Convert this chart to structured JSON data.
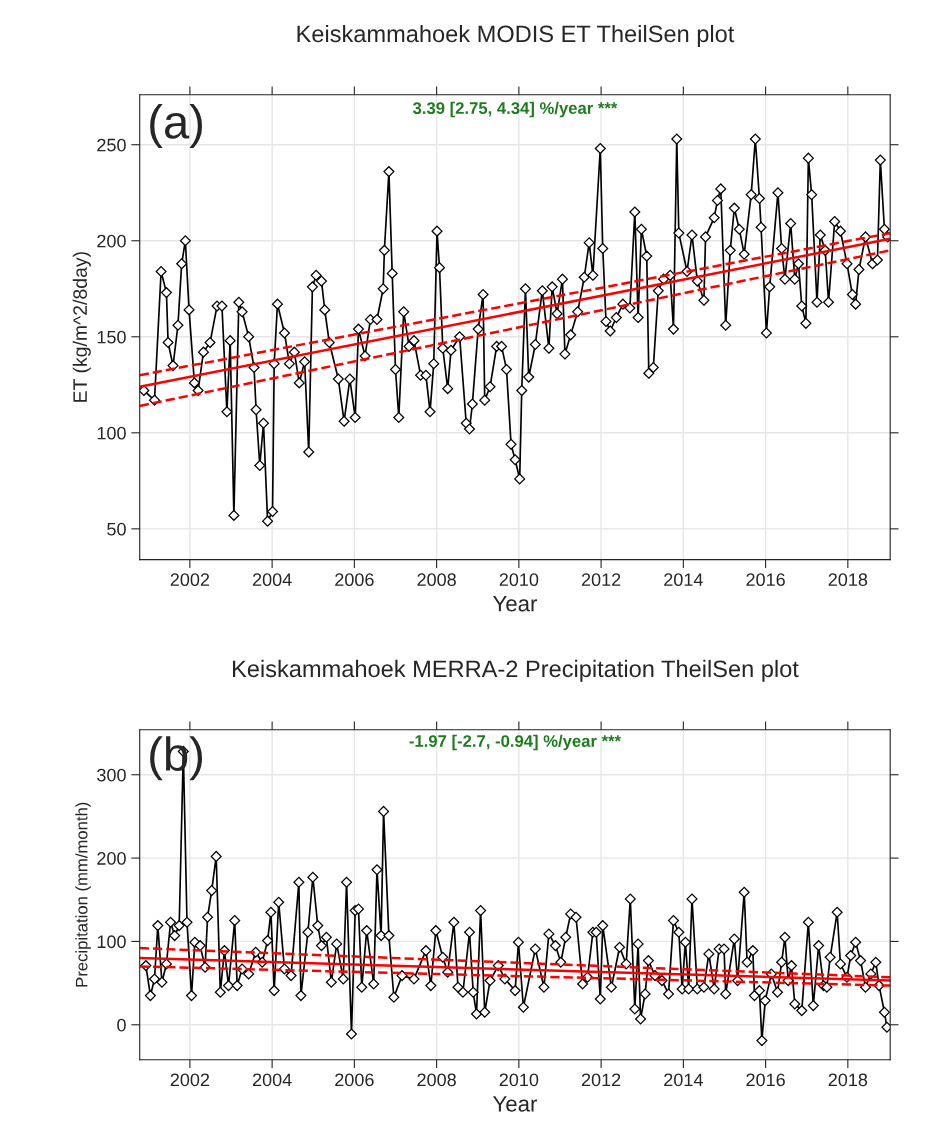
{
  "chart_data": [
    {
      "type": "line",
      "title": "Keiskammahoek MODIS ET TheilSen plot",
      "xlabel": "Year",
      "ylabel": "ET (kg/m^2/8day)",
      "annotations": [
        "(a)",
        "3.39 [2.75, 4.34] %/year ***"
      ],
      "xlim": [
        2000.78,
        2019.03
      ],
      "xticks": [
        2002,
        2004,
        2006,
        2008,
        2010,
        2012,
        2014,
        2016,
        2018
      ],
      "ylim": [
        34,
        276
      ],
      "yticks": [
        50,
        100,
        150,
        200,
        250
      ],
      "grid": true,
      "series": [
        {
          "color": "#000000",
          "marker": "diamond",
          "line_style": "solid",
          "x": [
            2000.88,
            2001.14,
            2001.3,
            2001.43,
            2001.47,
            2001.59,
            2001.71,
            2001.8,
            2001.89,
            2001.98,
            2002.11,
            2002.2,
            2002.33,
            2002.49,
            2002.66,
            2002.78,
            2002.9,
            2002.98,
            2003.07,
            2003.19,
            2003.27,
            2003.43,
            2003.56,
            2003.61,
            2003.7,
            2003.79,
            2003.89,
            2004.01,
            2004.05,
            2004.13,
            2004.3,
            2004.42,
            2004.54,
            2004.66,
            2004.79,
            2004.89,
            2004.98,
            2005.07,
            2005.2,
            2005.28,
            2005.39,
            2005.61,
            2005.75,
            2005.89,
            2006.02,
            2006.1,
            2006.26,
            2006.39,
            2006.55,
            2006.7,
            2006.73,
            2006.84,
            2006.92,
            2007.0,
            2007.08,
            2007.2,
            2007.33,
            2007.45,
            2007.61,
            2007.74,
            2007.84,
            2007.93,
            2008.01,
            2008.07,
            2008.15,
            2008.27,
            2008.35,
            2008.56,
            2008.72,
            2008.8,
            2008.87,
            2009.01,
            2009.13,
            2009.17,
            2009.3,
            2009.46,
            2009.58,
            2009.7,
            2009.81,
            2009.91,
            2010.02,
            2010.07,
            2010.16,
            2010.24,
            2010.4,
            2010.57,
            2010.73,
            2010.81,
            2010.93,
            2011.06,
            2011.12,
            2011.26,
            2011.43,
            2011.59,
            2011.71,
            2011.8,
            2011.98,
            2012.04,
            2012.12,
            2012.22,
            2012.37,
            2012.53,
            2012.7,
            2012.82,
            2012.9,
            2012.98,
            2013.11,
            2013.16,
            2013.27,
            2013.39,
            2013.52,
            2013.68,
            2013.76,
            2013.84,
            2013.89,
            2014.09,
            2014.21,
            2014.34,
            2014.5,
            2014.54,
            2014.75,
            2014.83,
            2014.91,
            2015.03,
            2015.14,
            2015.24,
            2015.36,
            2015.48,
            2015.65,
            2015.75,
            2015.85,
            2015.89,
            2016.02,
            2016.1,
            2016.3,
            2016.39,
            2016.47,
            2016.61,
            2016.71,
            2016.8,
            2016.88,
            2016.98,
            2017.04,
            2017.12,
            2017.25,
            2017.33,
            2017.45,
            2017.53,
            2017.68,
            2017.82,
            2017.98,
            2018.11,
            2018.19,
            2018.27,
            2018.43,
            2018.6,
            2018.72,
            2018.79,
            2018.89,
            2018.97
          ],
          "values": [
            122,
            117,
            184,
            173,
            147,
            135,
            156,
            188,
            200,
            164,
            126,
            122,
            142,
            147,
            166,
            166,
            111,
            148,
            57,
            168,
            163,
            150,
            134,
            112,
            83,
            105,
            54,
            59,
            136,
            167,
            152,
            136,
            142,
            126,
            137,
            90,
            176,
            182,
            179,
            164,
            147,
            128,
            106,
            128,
            108,
            154,
            140,
            159,
            159,
            175,
            195,
            236,
            183,
            133,
            108,
            163,
            145,
            148,
            130,
            130,
            111,
            136,
            205,
            186,
            144,
            123,
            143,
            150,
            105,
            102,
            115,
            154,
            172,
            117,
            124,
            145,
            145,
            133,
            94,
            86,
            76,
            122,
            175,
            129,
            146,
            174,
            144,
            176,
            162,
            180,
            141,
            151,
            163,
            181,
            199,
            182,
            248,
            196,
            158,
            153,
            160,
            167,
            165,
            215,
            160,
            206,
            192,
            131,
            134,
            174,
            180,
            182,
            154,
            253,
            204,
            184,
            203,
            179,
            169,
            202,
            212,
            221,
            227,
            156,
            195,
            217,
            206,
            193,
            224,
            253,
            222,
            207,
            152,
            176,
            225,
            196,
            180,
            209,
            180,
            188,
            166,
            157,
            243,
            224,
            168,
            203,
            195,
            168,
            210,
            205,
            188,
            172,
            167,
            185,
            202,
            188,
            190,
            242,
            206,
            202
          ]
        },
        {
          "color": "#ff0000",
          "marker": "none",
          "line_style": "solid",
          "x": [
            2000.78,
            2019.03
          ],
          "values": [
            124,
            201
          ]
        },
        {
          "color": "#ff0000",
          "marker": "none",
          "line_style": "dashed",
          "x": [
            2000.78,
            2019.03
          ],
          "values": [
            130,
            204
          ]
        },
        {
          "color": "#ff0000",
          "marker": "none",
          "line_style": "dashed",
          "x": [
            2000.78,
            2019.03
          ],
          "values": [
            114,
            195
          ]
        }
      ]
    },
    {
      "type": "line",
      "title": "Keiskammahoek MERRA-2 Precipitation TheilSen plot",
      "xlabel": "Year",
      "ylabel": "Precipitation (mm/month)",
      "annotations": [
        "(b)",
        "-1.97 [-2.7, -0.94] %/year ***"
      ],
      "xlim": [
        2000.78,
        2019.03
      ],
      "xticks": [
        2002,
        2004,
        2006,
        2008,
        2010,
        2012,
        2014,
        2016,
        2018
      ],
      "ylim": [
        -42,
        354
      ],
      "yticks": [
        0,
        100,
        200,
        300
      ],
      "grid": true,
      "series": [
        {
          "color": "#000000",
          "marker": "diamond",
          "line_style": "solid",
          "x": [
            2000.93,
            2001.04,
            2001.14,
            2001.22,
            2001.32,
            2001.43,
            2001.53,
            2001.63,
            2001.74,
            2001.84,
            2001.93,
            2002.04,
            2002.12,
            2002.25,
            2002.37,
            2002.43,
            2002.53,
            2002.64,
            2002.74,
            2002.84,
            2002.94,
            2003.09,
            2003.15,
            2003.27,
            2003.43,
            2003.6,
            2003.76,
            2003.89,
            2003.97,
            2004.05,
            2004.16,
            2004.3,
            2004.46,
            2004.65,
            2004.7,
            2004.87,
            2004.99,
            2005.11,
            2005.2,
            2005.32,
            2005.44,
            2005.57,
            2005.73,
            2005.81,
            2005.93,
            2006.02,
            2006.1,
            2006.18,
            2006.3,
            2006.47,
            2006.55,
            2006.65,
            2006.71,
            2006.84,
            2006.96,
            2007.16,
            2007.45,
            2007.74,
            2007.86,
            2007.98,
            2008.15,
            2008.27,
            2008.42,
            2008.52,
            2008.64,
            2008.8,
            2008.89,
            2008.97,
            2009.07,
            2009.17,
            2009.3,
            2009.5,
            2009.66,
            2009.91,
            2009.99,
            2010.11,
            2010.4,
            2010.61,
            2010.73,
            2010.89,
            2011.02,
            2011.14,
            2011.26,
            2011.39,
            2011.55,
            2011.67,
            2011.8,
            2011.88,
            2011.98,
            2012.04,
            2012.25,
            2012.45,
            2012.61,
            2012.71,
            2012.82,
            2012.9,
            2012.96,
            2013.07,
            2013.15,
            2013.31,
            2013.48,
            2013.64,
            2013.76,
            2013.89,
            2013.97,
            2014.05,
            2014.13,
            2014.21,
            2014.34,
            2014.5,
            2014.62,
            2014.75,
            2014.87,
            2014.99,
            2015.03,
            2015.24,
            2015.32,
            2015.48,
            2015.55,
            2015.69,
            2015.73,
            2015.85,
            2015.91,
            2015.99,
            2016.14,
            2016.29,
            2016.39,
            2016.47,
            2016.55,
            2016.63,
            2016.71,
            2016.88,
            2017.04,
            2017.16,
            2017.29,
            2017.41,
            2017.49,
            2017.57,
            2017.74,
            2017.82,
            2017.98,
            2018.07,
            2018.19,
            2018.31,
            2018.43,
            2018.56,
            2018.68,
            2018.76,
            2018.89,
            2018.95
          ],
          "values": [
            71,
            35,
            55,
            119,
            51,
            73,
            123,
            107,
            119,
            328,
            123,
            35,
            99,
            95,
            69,
            129,
            161,
            202,
            39,
            89,
            47,
            125,
            47,
            67,
            61,
            87,
            75,
            101,
            135,
            41,
            147,
            67,
            59,
            171,
            35,
            111,
            177,
            119,
            95,
            105,
            51,
            97,
            55,
            171,
            -11,
            137,
            139,
            45,
            113,
            49,
            186,
            107,
            256,
            107,
            33,
            59,
            55,
            89,
            47,
            113,
            81,
            63,
            123,
            45,
            39,
            111,
            39,
            13,
            137,
            15,
            53,
            71,
            55,
            41,
            99,
            21,
            91,
            45,
            109,
            95,
            75,
            105,
            133,
            129,
            49,
            57,
            111,
            111,
            31,
            119,
            45,
            93,
            73,
            151,
            19,
            97,
            7,
            37,
            77,
            59,
            53,
            37,
            125,
            111,
            43,
            99,
            43,
            151,
            43,
            45,
            85,
            43,
            91,
            91,
            37,
            103,
            53,
            159,
            75,
            89,
            35,
            41,
            -19,
            29,
            61,
            39,
            75,
            105,
            53,
            71,
            25,
            17,
            123,
            23,
            95,
            47,
            45,
            81,
            135,
            73,
            57,
            83,
            99,
            77,
            45,
            61,
            75,
            47,
            15,
            -3
          ]
        },
        {
          "color": "#ff0000",
          "marker": "none",
          "line_style": "solid",
          "x": [
            2000.78,
            2019.03
          ],
          "values": [
            80,
            53
          ]
        },
        {
          "color": "#ff0000",
          "marker": "none",
          "line_style": "dashed",
          "x": [
            2000.78,
            2019.03
          ],
          "values": [
            92,
            57
          ]
        },
        {
          "color": "#ff0000",
          "marker": "none",
          "line_style": "dashed",
          "x": [
            2000.78,
            2019.03
          ],
          "values": [
            70,
            47
          ]
        }
      ]
    }
  ]
}
